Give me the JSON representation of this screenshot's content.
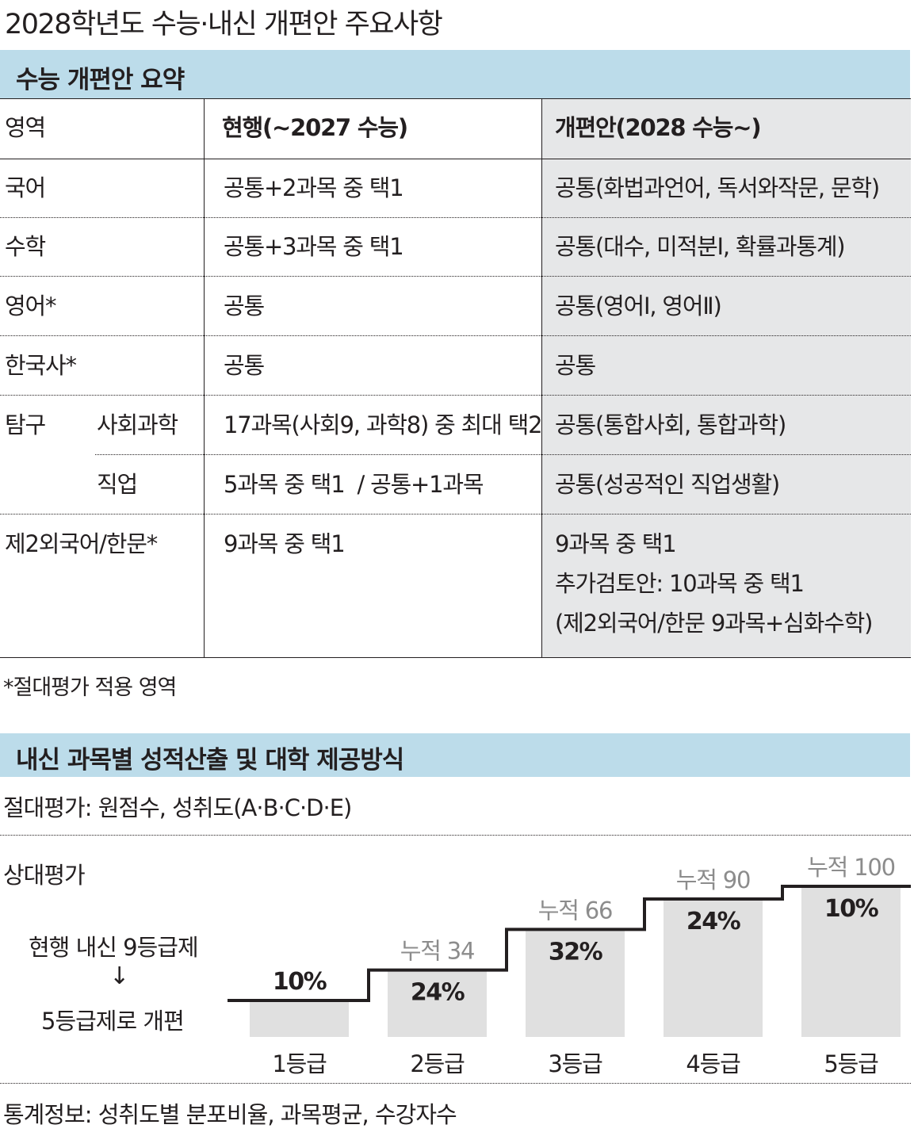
{
  "title": "2028학년도 수능·내신 개편안 주요사항",
  "suneung": {
    "header": "수능 개편안 요약",
    "columns": {
      "area": "영역",
      "current": "현행(~2027 수능)",
      "reform": "개편안(2028 수능~)"
    },
    "rows": {
      "korean": {
        "area": "국어",
        "current": "공통+2과목 중 택1",
        "reform": "공통(화법과언어, 독서와작문, 문학)"
      },
      "math": {
        "area": "수학",
        "current": "공통+3과목 중 택1",
        "reform": "공통(대수, 미적분Ⅰ, 확률과통계)"
      },
      "english": {
        "area": "영어*",
        "current": "공통",
        "reform": "공통(영어Ⅰ, 영어Ⅱ)"
      },
      "history": {
        "area": "한국사*",
        "current": "공통",
        "reform": "공통"
      },
      "inquiry": {
        "area": "탐구",
        "social_science": {
          "sub": "사회과학",
          "current": "17과목(사회9, 과학8) 중 최대 택2",
          "reform": "공통(통합사회, 통합과학)"
        },
        "vocational": {
          "sub": "직업",
          "current": "5과목 중 택1  / 공통+1과목",
          "reform": "공통(성공적인 직업생활)"
        }
      },
      "foreign": {
        "area": "제2외국어/한문*",
        "current": "9과목 중 택1",
        "reform_1": "9과목 중 택1",
        "reform_2": "추가검토안: 10과목 중 택1",
        "reform_3": "(제2외국어/한문 9과목+심화수학)"
      }
    },
    "footnote": "*절대평가 적용 영역"
  },
  "naesin": {
    "header": "내신 과목별 성적산출 및 대학 제공방식",
    "absolute": "절대평가: 원점수, 성취도(A·B·C·D·E)",
    "relative": "상대평가",
    "reform_line1": "현행 내신 9등급제",
    "reform_arrow": "↓",
    "reform_line2": "5등급제로 개편",
    "stats": "통계정보: 성취도별 분포비율, 과목평균, 수강자수"
  },
  "colors": {
    "header_bg": "#bcdcea",
    "column_shade": "#e6e7e8",
    "bar": "#e0e0e0",
    "cumulative_text": "#8c8c8c",
    "step_line": "#231f20"
  },
  "chart_data": {
    "type": "bar",
    "categories": [
      "1등급",
      "2등급",
      "3등급",
      "4등급",
      "5등급"
    ],
    "values": [
      10,
      24,
      32,
      24,
      10
    ],
    "value_labels": [
      "10%",
      "24%",
      "32%",
      "24%",
      "10%"
    ],
    "cumulative": [
      10,
      34,
      66,
      90,
      100
    ],
    "cumulative_labels": [
      "",
      "누적 34",
      "누적 66",
      "누적 90",
      "누적 100"
    ],
    "unit": "%",
    "step_line": "cumulative",
    "grid": false
  }
}
